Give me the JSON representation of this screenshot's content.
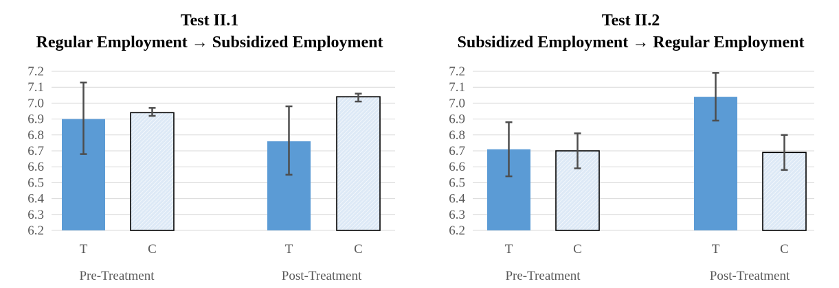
{
  "chart_data": [
    {
      "type": "bar",
      "title": "Test II.1",
      "subtitle": "Regular Employment → Subsidized Employment",
      "ylim": [
        6.2,
        7.2
      ],
      "yticks": [
        "7.2",
        "7.1",
        "7.0",
        "6.9",
        "6.8",
        "6.7",
        "6.6",
        "6.5",
        "6.4",
        "6.3",
        "6.2"
      ],
      "grid": true,
      "groups": [
        {
          "label": "Pre-Treatment",
          "bars": [
            {
              "category": "T",
              "value": 6.9,
              "err_low": 6.68,
              "err_high": 7.13,
              "style": "solid"
            },
            {
              "category": "C",
              "value": 6.94,
              "err_low": 6.92,
              "err_high": 6.97,
              "style": "hatched"
            }
          ]
        },
        {
          "label": "Post-Treatment",
          "bars": [
            {
              "category": "T",
              "value": 6.76,
              "err_low": 6.55,
              "err_high": 6.98,
              "style": "solid"
            },
            {
              "category": "C",
              "value": 7.04,
              "err_low": 7.01,
              "err_high": 7.06,
              "style": "hatched"
            }
          ]
        }
      ]
    },
    {
      "type": "bar",
      "title": "Test II.2",
      "subtitle": "Subsidized Employment → Regular Employment",
      "ylim": [
        6.2,
        7.2
      ],
      "yticks": [
        "7.2",
        "7.1",
        "7.0",
        "6.9",
        "6.8",
        "6.7",
        "6.6",
        "6.5",
        "6.4",
        "6.3",
        "6.2"
      ],
      "grid": true,
      "groups": [
        {
          "label": "Pre-Treatment",
          "bars": [
            {
              "category": "T",
              "value": 6.71,
              "err_low": 6.54,
              "err_high": 6.88,
              "style": "solid"
            },
            {
              "category": "C",
              "value": 6.7,
              "err_low": 6.59,
              "err_high": 6.81,
              "style": "hatched"
            }
          ]
        },
        {
          "label": "Post-Treatment",
          "bars": [
            {
              "category": "T",
              "value": 7.04,
              "err_low": 6.89,
              "err_high": 7.19,
              "style": "solid"
            },
            {
              "category": "C",
              "value": 6.69,
              "err_low": 6.58,
              "err_high": 6.8,
              "style": "hatched"
            }
          ]
        }
      ]
    }
  ],
  "colors": {
    "solid_bar": "#5b9bd5",
    "hatched_fill": "#dde9f6",
    "hatched_line": "#ffffff",
    "hatched_outline": "#000000",
    "error_bar": "#4d4d4d"
  }
}
